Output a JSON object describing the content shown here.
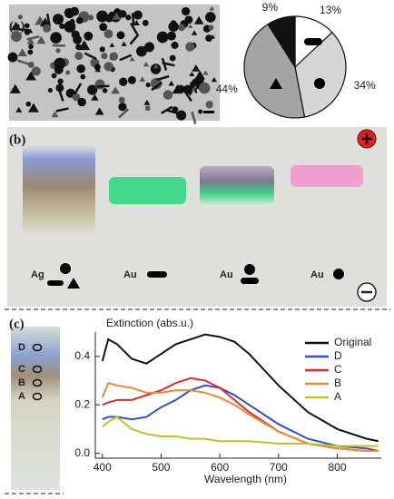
{
  "chart_data": [
    {
      "type": "pie",
      "values": [
        13,
        34,
        44,
        9
      ],
      "value_labels": [
        "13%",
        "34%",
        "44%",
        "9%"
      ],
      "colors": [
        "#ffffff",
        "#d6d6d6",
        "#a4a4a4",
        "#111111"
      ]
    },
    {
      "type": "line",
      "y_label": "Extinction (abs.u.)",
      "x_label": "Wavelength (nm)",
      "x": [
        400,
        410,
        425,
        450,
        475,
        500,
        525,
        550,
        575,
        600,
        625,
        650,
        700,
        750,
        800,
        850,
        870
      ],
      "series": [
        {
          "name": "Original",
          "color": "#111111",
          "values": [
            0.38,
            0.47,
            0.45,
            0.39,
            0.37,
            0.41,
            0.45,
            0.47,
            0.49,
            0.48,
            0.46,
            0.41,
            0.28,
            0.17,
            0.1,
            0.06,
            0.05
          ]
        },
        {
          "name": "D",
          "color": "#2b4fd8",
          "values": [
            0.14,
            0.15,
            0.15,
            0.14,
            0.15,
            0.19,
            0.22,
            0.26,
            0.28,
            0.27,
            0.24,
            0.2,
            0.12,
            0.06,
            0.03,
            0.02,
            0.01
          ]
        },
        {
          "name": "C",
          "color": "#e02a2a",
          "values": [
            0.2,
            0.21,
            0.22,
            0.22,
            0.24,
            0.26,
            0.29,
            0.31,
            0.3,
            0.27,
            0.22,
            0.17,
            0.09,
            0.04,
            0.02,
            0.01,
            0.01
          ]
        },
        {
          "name": "B",
          "color": "#f08a30",
          "values": [
            0.23,
            0.29,
            0.28,
            0.27,
            0.25,
            0.25,
            0.26,
            0.26,
            0.25,
            0.23,
            0.2,
            0.16,
            0.09,
            0.04,
            0.02,
            0.01,
            0.01
          ]
        },
        {
          "name": "A",
          "color": "#c8c020",
          "values": [
            0.11,
            0.13,
            0.15,
            0.1,
            0.08,
            0.07,
            0.07,
            0.06,
            0.06,
            0.05,
            0.05,
            0.05,
            0.04,
            0.04,
            0.03,
            0.03,
            0.03
          ]
        }
      ],
      "xlim": [
        388,
        875
      ],
      "xticks": [
        400,
        500,
        600,
        700,
        800
      ],
      "ylim": [
        -0.02,
        0.5
      ],
      "yticks": [
        {
          "value": 0,
          "label": "0.0"
        },
        0.2,
        0.4
      ],
      "legend": "top-right"
    }
  ],
  "figure": {
    "panel_labels": [
      "(a)",
      "(b)",
      "(c)"
    ],
    "gel_lanes": [
      "Ag",
      "Au",
      "Au",
      "Au"
    ],
    "strip_labels": [
      "D",
      "C",
      "B",
      "A"
    ]
  }
}
